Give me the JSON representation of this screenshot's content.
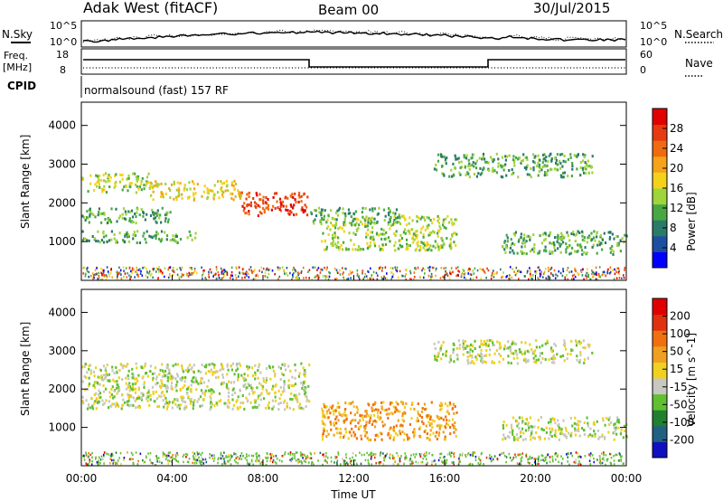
{
  "header": {
    "station": "Adak West (fitACF)",
    "beam": "Beam 00",
    "date": "30/Jul/2015"
  },
  "top_panels": {
    "nsky_label": "N.Sky",
    "nsky_ticks": [
      "10^5",
      "10^0"
    ],
    "nsearch_label": "N.Search",
    "nsearch_ticks": [
      "10^5",
      "10^0"
    ],
    "freq_label_line1": "Freq.",
    "freq_label_line2": "[MHz]",
    "freq_ticks": [
      "18",
      "8"
    ],
    "nave_label": "Nave",
    "nave_ticks": [
      "60",
      "0"
    ],
    "cpid_label": "CPID",
    "cpid_text": "normalsound (fast) 157 RF"
  },
  "time_axis": {
    "ticks": [
      "00:00",
      "04:00",
      "08:00",
      "12:00",
      "16:00",
      "20:00",
      "00:00"
    ],
    "label": "Time UT"
  },
  "colors": {
    "power_scale": [
      "#0000ff",
      "#1c4fa0",
      "#2a7a6a",
      "#47a843",
      "#9fd43a",
      "#f5d21a",
      "#f5a31a",
      "#f06a10",
      "#e83a10",
      "#e00000"
    ],
    "velocity_scale": [
      "#1010c0",
      "#206080",
      "#208030",
      "#60c030",
      "#c8c8c0",
      "#f0d020",
      "#f0a020",
      "#f07010",
      "#e03010",
      "#e00000"
    ],
    "ground": "#999999"
  },
  "chart_data": [
    {
      "type": "heatmap",
      "name": "power",
      "xlabel": "",
      "ylabel": "Slant Range [km]",
      "xlim": [
        0,
        24
      ],
      "ylim": [
        0,
        4600
      ],
      "yticks": [
        "1000",
        "2000",
        "3000",
        "4000"
      ],
      "colorbar": {
        "label": "Power [dB]",
        "ticks": [
          "28",
          "24",
          "20",
          "16",
          "12",
          "8",
          "4"
        ]
      },
      "echo_regions": [
        {
          "t0": 0.0,
          "t1": 3.0,
          "r0": 2300,
          "r1": 2800,
          "level": 4
        },
        {
          "t0": 3.0,
          "t1": 7.0,
          "r0": 2100,
          "r1": 2600,
          "level": 5
        },
        {
          "t0": 7.0,
          "t1": 10.0,
          "r0": 1700,
          "r1": 2300,
          "level": 8
        },
        {
          "t0": 0.0,
          "t1": 4.0,
          "r0": 1500,
          "r1": 1900,
          "level": 3
        },
        {
          "t0": 0.0,
          "t1": 5.0,
          "r0": 1000,
          "r1": 1300,
          "level": 3
        },
        {
          "t0": 10.0,
          "t1": 14.0,
          "r0": 1500,
          "r1": 1900,
          "level": 3
        },
        {
          "t0": 10.5,
          "t1": 16.5,
          "r0": 800,
          "r1": 1700,
          "level": 4
        },
        {
          "t0": 18.5,
          "t1": 24.0,
          "r0": 700,
          "r1": 1300,
          "level": 3
        },
        {
          "t0": 15.5,
          "t1": 22.5,
          "r0": 2700,
          "r1": 3300,
          "level": 3
        }
      ]
    },
    {
      "type": "heatmap",
      "name": "velocity",
      "xlabel": "Time UT",
      "ylabel": "Slant Range [km]",
      "xlim": [
        0,
        24
      ],
      "ylim": [
        0,
        4600
      ],
      "yticks": [
        "1000",
        "2000",
        "3000",
        "4000"
      ],
      "colorbar": {
        "label": "Velocity [m s^-1]",
        "ticks": [
          "200",
          "100",
          "50",
          "15",
          "-15",
          "-50",
          "-100",
          "-200"
        ]
      },
      "echo_regions": [
        {
          "t0": 0.0,
          "t1": 10.0,
          "r0": 1500,
          "r1": 2700,
          "level": 4
        },
        {
          "t0": 10.5,
          "t1": 16.5,
          "r0": 700,
          "r1": 1700,
          "level": 6
        },
        {
          "t0": 18.5,
          "t1": 24.0,
          "r0": 700,
          "r1": 1300,
          "level": 4
        },
        {
          "t0": 15.5,
          "t1": 22.5,
          "r0": 2700,
          "r1": 3300,
          "level": 4
        }
      ]
    }
  ]
}
